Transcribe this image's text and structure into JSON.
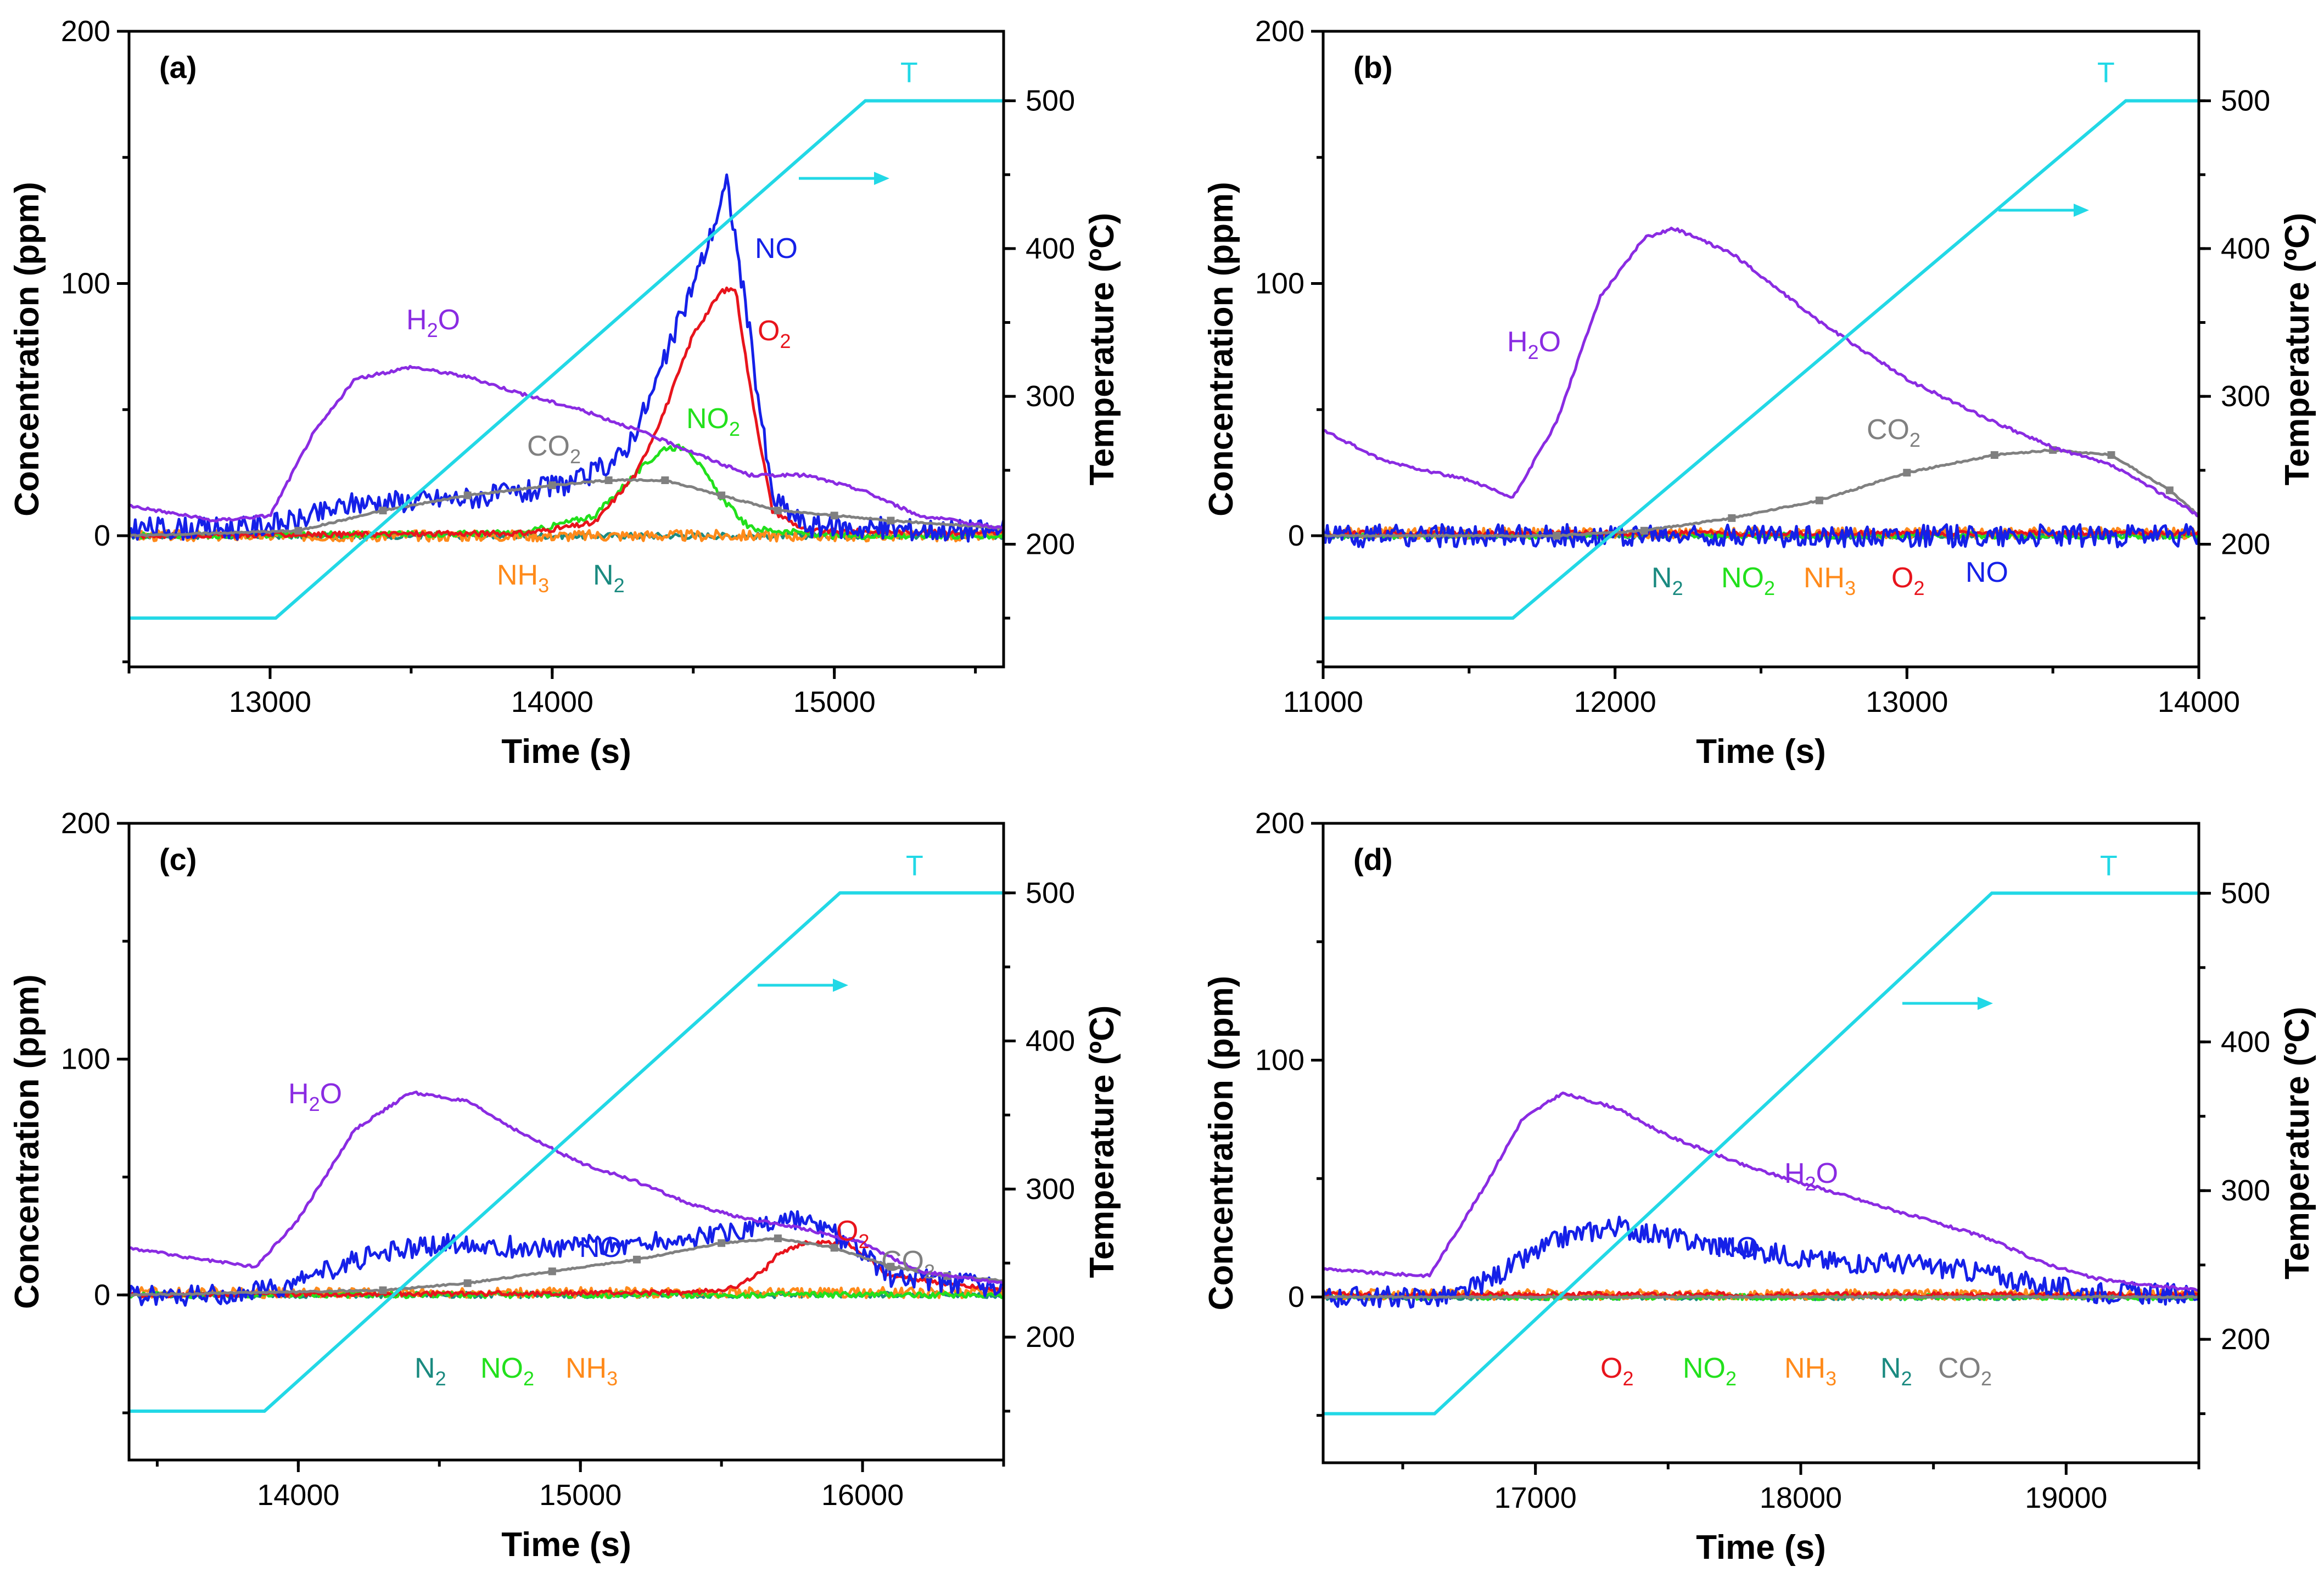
{
  "chart_data": [
    {
      "type": "line",
      "panel_label": "(a)",
      "xlabel": "Time (s)",
      "ylabel": "Concentration (ppm)",
      "y2label": "Temperature (ºC)",
      "xlim": [
        12500,
        15600
      ],
      "ylim": [
        -52,
        200
      ],
      "y2lim": [
        117,
        547
      ],
      "xticks": [
        "13000",
        "14000",
        "15000"
      ],
      "yticks": [
        "0",
        "100",
        "200"
      ],
      "y2ticks": [
        "200",
        "300",
        "400",
        "500"
      ],
      "temperature": {
        "name": "T",
        "color": "#22d8e6",
        "x": [
          12500,
          13020,
          15110,
          15600
        ],
        "y": [
          150,
          150,
          500,
          500
        ]
      },
      "series": [
        {
          "name": "H2O",
          "color": "#8a2be2",
          "x": [
            12500,
            12800,
            13000,
            13150,
            13300,
            13500,
            13700,
            13900,
            14100,
            14300,
            14500,
            14700,
            14900,
            15100,
            15300,
            15600
          ],
          "y": [
            12,
            6,
            8,
            40,
            62,
            67,
            63,
            56,
            50,
            42,
            33,
            24,
            24,
            18,
            8,
            3
          ]
        },
        {
          "name": "CO2",
          "color": "#808080",
          "x": [
            12500,
            13100,
            13400,
            13700,
            14000,
            14200,
            14400,
            14600,
            14800,
            15000,
            15200,
            15600
          ],
          "y": [
            0,
            2,
            10,
            16,
            20,
            22,
            22,
            16,
            10,
            8,
            6,
            3
          ]
        },
        {
          "name": "NO",
          "color": "#1520e8",
          "x": [
            12500,
            12900,
            13100,
            13300,
            13500,
            13700,
            13900,
            14100,
            14250,
            14350,
            14450,
            14550,
            14620,
            14700,
            14780,
            14900,
            15100,
            15600
          ],
          "y": [
            3,
            3,
            6,
            13,
            14,
            15,
            17,
            22,
            32,
            55,
            85,
            115,
            140,
            80,
            15,
            4,
            3,
            2
          ]
        },
        {
          "name": "O2",
          "color": "#e8141c",
          "x": [
            12500,
            13900,
            14150,
            14300,
            14400,
            14500,
            14600,
            14650,
            14700,
            14780,
            14900,
            15600
          ],
          "y": [
            0,
            1,
            5,
            25,
            50,
            80,
            97,
            98,
            60,
            10,
            2,
            1
          ]
        },
        {
          "name": "NO2",
          "color": "#22e01c",
          "x": [
            12500,
            13900,
            14150,
            14300,
            14400,
            14480,
            14600,
            14700,
            15000,
            15600
          ],
          "y": [
            0,
            1,
            8,
            25,
            35,
            35,
            15,
            3,
            0,
            0
          ]
        },
        {
          "name": "NH3",
          "color": "#ff8a1a",
          "x": [
            12500,
            15600
          ],
          "y": [
            0,
            0
          ]
        },
        {
          "name": "N2",
          "color": "#1a8a80",
          "x": [
            12500,
            15600
          ],
          "y": [
            0,
            0
          ]
        }
      ],
      "annotations": {
        "H2O": {
          "text": "H",
          "sub": "2",
          "rest": "O"
        },
        "CO2": {
          "text": "CO",
          "sub": "2",
          "rest": ""
        },
        "NO": {
          "text": "NO",
          "sub": "",
          "rest": ""
        },
        "O2": {
          "text": "O",
          "sub": "2",
          "rest": ""
        },
        "NO2": {
          "text": "NO",
          "sub": "2",
          "rest": ""
        },
        "NH3": {
          "text": "NH",
          "sub": "3",
          "rest": ""
        },
        "N2": {
          "text": "N",
          "sub": "2",
          "rest": ""
        },
        "T": {
          "text": "T",
          "sub": "",
          "rest": ""
        }
      }
    },
    {
      "type": "line",
      "panel_label": "(b)",
      "xlabel": "Time (s)",
      "ylabel": "Concentration (ppm)",
      "y2label": "Temperature (ºC)",
      "xlim": [
        11000,
        14000
      ],
      "ylim": [
        -52,
        200
      ],
      "y2lim": [
        117,
        547
      ],
      "xticks": [
        "11000",
        "12000",
        "13000",
        "14000"
      ],
      "yticks": [
        "0",
        "100",
        "200"
      ],
      "y2ticks": [
        "200",
        "300",
        "400",
        "500"
      ],
      "temperature": {
        "name": "T",
        "color": "#22d8e6",
        "x": [
          11000,
          11650,
          13750,
          14000
        ],
        "y": [
          150,
          150,
          500,
          500
        ]
      },
      "series": [
        {
          "name": "H2O",
          "color": "#8a2be2",
          "x": [
            11000,
            11200,
            11500,
            11650,
            11800,
            11950,
            12100,
            12200,
            12400,
            12700,
            13000,
            13300,
            13500,
            13700,
            13900,
            14000
          ],
          "y": [
            42,
            30,
            22,
            15,
            45,
            95,
            118,
            122,
            112,
            85,
            62,
            45,
            35,
            28,
            15,
            8
          ]
        },
        {
          "name": "CO2",
          "color": "#808080",
          "x": [
            11000,
            11800,
            12100,
            12400,
            12700,
            13000,
            13300,
            13500,
            13700,
            13900,
            14000
          ],
          "y": [
            0,
            0,
            2,
            7,
            14,
            25,
            32,
            34,
            32,
            18,
            8
          ]
        },
        {
          "name": "NO",
          "color": "#1520e8",
          "x": [
            11000,
            14000
          ],
          "y": [
            0,
            0
          ]
        },
        {
          "name": "O2",
          "color": "#e8141c",
          "x": [
            11000,
            14000
          ],
          "y": [
            1,
            1
          ]
        },
        {
          "name": "NO2",
          "color": "#22e01c",
          "x": [
            11000,
            14000
          ],
          "y": [
            0,
            0
          ]
        },
        {
          "name": "NH3",
          "color": "#ff8a1a",
          "x": [
            11000,
            14000
          ],
          "y": [
            1,
            1
          ]
        },
        {
          "name": "N2",
          "color": "#1a8a80",
          "x": [
            11000,
            14000
          ],
          "y": [
            0,
            0
          ]
        }
      ],
      "annotations": {
        "H2O": {
          "text": "H",
          "sub": "2",
          "rest": "O"
        },
        "CO2": {
          "text": "CO",
          "sub": "2",
          "rest": ""
        },
        "NO": {
          "text": "NO",
          "sub": "",
          "rest": ""
        },
        "O2": {
          "text": "O",
          "sub": "2",
          "rest": ""
        },
        "NO2": {
          "text": "NO",
          "sub": "2",
          "rest": ""
        },
        "NH3": {
          "text": "NH",
          "sub": "3",
          "rest": ""
        },
        "N2": {
          "text": "N",
          "sub": "2",
          "rest": ""
        },
        "T": {
          "text": "T",
          "sub": "",
          "rest": ""
        }
      }
    },
    {
      "type": "line",
      "panel_label": "(c)",
      "xlabel": "Time (s)",
      "ylabel": "Concentration (ppm)",
      "y2label": "Temperature (ºC)",
      "xlim": [
        13400,
        16500
      ],
      "ylim": [
        -70,
        200
      ],
      "y2lim": [
        117,
        547
      ],
      "xticks": [
        "14000",
        "15000",
        "16000"
      ],
      "yticks": [
        "0",
        "100",
        "200"
      ],
      "y2ticks": [
        "200",
        "300",
        "400",
        "500"
      ],
      "temperature": {
        "name": "T",
        "color": "#22d8e6",
        "x": [
          13400,
          13880,
          15920,
          16500
        ],
        "y": [
          150,
          150,
          500,
          500
        ]
      },
      "series": [
        {
          "name": "H2O",
          "color": "#8a2be2",
          "x": [
            13400,
            13600,
            13850,
            14000,
            14200,
            14400,
            14600,
            14800,
            15000,
            15200,
            15400,
            15600,
            15800,
            16000,
            16200,
            16500
          ],
          "y": [
            20,
            16,
            12,
            32,
            70,
            86,
            82,
            68,
            56,
            48,
            38,
            32,
            28,
            22,
            10,
            5
          ]
        },
        {
          "name": "CO2",
          "color": "#808080",
          "x": [
            13400,
            14300,
            14600,
            14900,
            15200,
            15500,
            15700,
            15900,
            16100,
            16300,
            16500
          ],
          "y": [
            0,
            2,
            5,
            10,
            15,
            22,
            24,
            20,
            12,
            8,
            6
          ]
        },
        {
          "name": "NO",
          "color": "#1520e8",
          "x": [
            13400,
            13800,
            14000,
            14200,
            14400,
            14600,
            14800,
            15000,
            15200,
            15400,
            15600,
            15750,
            15900,
            16100,
            16500
          ],
          "y": [
            0,
            0,
            5,
            15,
            20,
            22,
            20,
            21,
            22,
            24,
            28,
            32,
            26,
            8,
            3
          ]
        },
        {
          "name": "O2",
          "color": "#e8141c",
          "x": [
            13400,
            15400,
            15550,
            15650,
            15700,
            15800,
            15950,
            16100,
            16500
          ],
          "y": [
            0,
            1,
            3,
            10,
            18,
            22,
            22,
            8,
            2
          ]
        },
        {
          "name": "NO2",
          "color": "#22e01c",
          "x": [
            13400,
            16500
          ],
          "y": [
            0,
            0
          ]
        },
        {
          "name": "NH3",
          "color": "#ff8a1a",
          "x": [
            13400,
            16500
          ],
          "y": [
            1,
            1
          ]
        },
        {
          "name": "N2",
          "color": "#1a8a80",
          "x": [
            13400,
            16500
          ],
          "y": [
            0,
            0
          ]
        }
      ],
      "annotations": {
        "H2O": {
          "text": "H",
          "sub": "2",
          "rest": "O"
        },
        "CO2": {
          "text": "CO",
          "sub": "2",
          "rest": ""
        },
        "NO": {
          "text": "NO",
          "sub": "",
          "rest": ""
        },
        "O2": {
          "text": "O",
          "sub": "2",
          "rest": ""
        },
        "NO2": {
          "text": "NO",
          "sub": "2",
          "rest": ""
        },
        "NH3": {
          "text": "NH",
          "sub": "3",
          "rest": ""
        },
        "N2": {
          "text": "N",
          "sub": "2",
          "rest": ""
        },
        "T": {
          "text": "T",
          "sub": "",
          "rest": ""
        }
      }
    },
    {
      "type": "line",
      "panel_label": "(d)",
      "xlabel": "Time (s)",
      "ylabel": "Concentration (ppm)",
      "y2label": "Temperature (ºC)",
      "xlim": [
        16200,
        19500
      ],
      "ylim": [
        -70,
        200
      ],
      "y2lim": [
        117,
        547
      ],
      "xticks": [
        "17000",
        "18000",
        "19000"
      ],
      "yticks": [
        "0",
        "100",
        "200"
      ],
      "y2ticks": [
        "200",
        "300",
        "400",
        "500"
      ],
      "temperature": {
        "name": "T",
        "color": "#22d8e6",
        "x": [
          16200,
          16620,
          18720,
          19500
        ],
        "y": [
          150,
          150,
          500,
          500
        ]
      },
      "series": [
        {
          "name": "H2O",
          "color": "#8a2be2",
          "x": [
            16200,
            16400,
            16600,
            16800,
            16950,
            17100,
            17300,
            17500,
            17800,
            18100,
            18400,
            18700,
            18900,
            19100,
            19300,
            19500
          ],
          "y": [
            12,
            10,
            9,
            45,
            75,
            86,
            80,
            68,
            55,
            45,
            35,
            25,
            15,
            8,
            5,
            3
          ]
        },
        {
          "name": "CO2",
          "color": "#808080",
          "x": [
            16200,
            19500
          ],
          "y": [
            0,
            0
          ]
        },
        {
          "name": "NO",
          "color": "#1520e8",
          "x": [
            16200,
            16700,
            16900,
            17100,
            17300,
            17500,
            17800,
            18100,
            18400,
            18700,
            18900,
            19100,
            19500
          ],
          "y": [
            0,
            0,
            12,
            25,
            30,
            25,
            20,
            15,
            14,
            10,
            5,
            2,
            1
          ]
        },
        {
          "name": "O2",
          "color": "#e8141c",
          "x": [
            16200,
            19500
          ],
          "y": [
            1,
            1
          ]
        },
        {
          "name": "NO2",
          "color": "#22e01c",
          "x": [
            16200,
            19500
          ],
          "y": [
            0,
            0
          ]
        },
        {
          "name": "NH3",
          "color": "#ff8a1a",
          "x": [
            16200,
            19500
          ],
          "y": [
            1,
            1
          ]
        },
        {
          "name": "N2",
          "color": "#1a8a80",
          "x": [
            16200,
            19500
          ],
          "y": [
            0,
            0
          ]
        }
      ],
      "annotations": {
        "H2O": {
          "text": "H",
          "sub": "2",
          "rest": "O"
        },
        "CO2": {
          "text": "CO",
          "sub": "2",
          "rest": ""
        },
        "NO": {
          "text": "NO",
          "sub": "",
          "rest": ""
        },
        "O2": {
          "text": "O",
          "sub": "2",
          "rest": ""
        },
        "NO2": {
          "text": "NO",
          "sub": "2",
          "rest": ""
        },
        "NH3": {
          "text": "NH",
          "sub": "3",
          "rest": ""
        },
        "N2": {
          "text": "N",
          "sub": "2",
          "rest": ""
        },
        "T": {
          "text": "T",
          "sub": "",
          "rest": ""
        }
      }
    }
  ]
}
